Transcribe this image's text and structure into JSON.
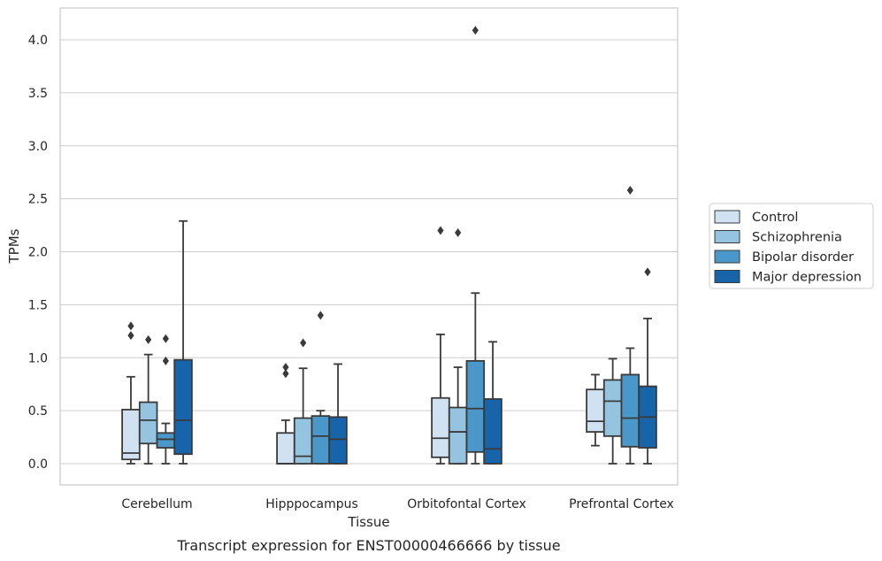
{
  "caption": "Transcript expression for ENST00000466666 by tissue",
  "chart_data": {
    "type": "box",
    "xlabel": "Tissue",
    "ylabel": "TPMs",
    "ylim": [
      -0.2,
      4.3
    ],
    "yticks": [
      "0.0",
      "0.5",
      "1.0",
      "1.5",
      "2.0",
      "2.5",
      "3.0",
      "3.5",
      "4.0"
    ],
    "grid": "horizontal",
    "legend_position": "right",
    "categories": [
      "Cerebellum",
      "Hipppocampus",
      "Orbitofontal Cortex",
      "Prefrontal Cortex"
    ],
    "series": [
      {
        "name": "Control",
        "color": "#d0e1f2",
        "boxes": [
          {
            "min": 0.0,
            "q1": 0.04,
            "median": 0.1,
            "q3": 0.51,
            "max": 0.82,
            "outliers": [
              1.3,
              1.21
            ]
          },
          {
            "min": 0.0,
            "q1": 0.0,
            "median": 0.0,
            "q3": 0.29,
            "max": 0.41,
            "outliers": [
              0.91,
              0.85
            ]
          },
          {
            "min": 0.0,
            "q1": 0.06,
            "median": 0.24,
            "q3": 0.62,
            "max": 1.22,
            "outliers": [
              2.2
            ]
          },
          {
            "min": 0.17,
            "q1": 0.3,
            "median": 0.4,
            "q3": 0.7,
            "max": 0.84,
            "outliers": []
          }
        ]
      },
      {
        "name": "Schizophrenia",
        "color": "#94c4df",
        "boxes": [
          {
            "min": 0.0,
            "q1": 0.19,
            "median": 0.41,
            "q3": 0.58,
            "max": 1.03,
            "outliers": [
              1.17
            ]
          },
          {
            "min": 0.0,
            "q1": 0.0,
            "median": 0.07,
            "q3": 0.43,
            "max": 0.9,
            "outliers": [
              1.14
            ]
          },
          {
            "min": 0.0,
            "q1": 0.0,
            "median": 0.3,
            "q3": 0.53,
            "max": 0.91,
            "outliers": [
              2.18
            ]
          },
          {
            "min": 0.0,
            "q1": 0.26,
            "median": 0.59,
            "q3": 0.79,
            "max": 0.99,
            "outliers": []
          }
        ]
      },
      {
        "name": "Bipolar disorder",
        "color": "#4a98c9",
        "boxes": [
          {
            "min": 0.0,
            "q1": 0.15,
            "median": 0.23,
            "q3": 0.29,
            "max": 0.38,
            "outliers": [
              1.18,
              0.97
            ]
          },
          {
            "min": 0.0,
            "q1": 0.0,
            "median": 0.26,
            "q3": 0.45,
            "max": 0.5,
            "outliers": [
              1.4
            ]
          },
          {
            "min": 0.0,
            "q1": 0.11,
            "median": 0.52,
            "q3": 0.97,
            "max": 1.61,
            "outliers": [
              4.09
            ]
          },
          {
            "min": 0.0,
            "q1": 0.16,
            "median": 0.43,
            "q3": 0.84,
            "max": 1.09,
            "outliers": [
              2.58
            ]
          }
        ]
      },
      {
        "name": "Major depression",
        "color": "#1764ab",
        "boxes": [
          {
            "min": 0.0,
            "q1": 0.09,
            "median": 0.41,
            "q3": 0.98,
            "max": 2.29,
            "outliers": []
          },
          {
            "min": 0.0,
            "q1": 0.0,
            "median": 0.23,
            "q3": 0.44,
            "max": 0.94,
            "outliers": []
          },
          {
            "min": 0.0,
            "q1": 0.0,
            "median": 0.14,
            "q3": 0.61,
            "max": 1.15,
            "outliers": []
          },
          {
            "min": 0.0,
            "q1": 0.15,
            "median": 0.44,
            "q3": 0.73,
            "max": 1.37,
            "outliers": [
              1.81
            ]
          }
        ]
      }
    ]
  }
}
